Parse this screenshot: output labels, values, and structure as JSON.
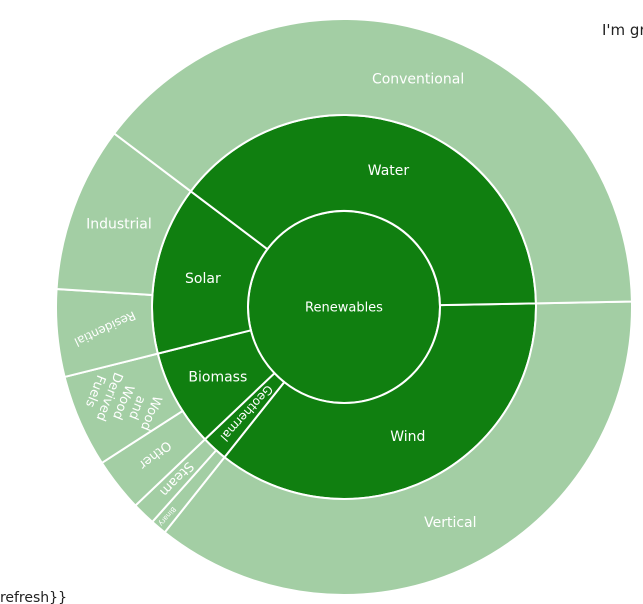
{
  "page_text": {
    "top_right_fragment": "I'm gr",
    "bottom_left_fragment": "t refresh}}"
  },
  "chart_data": {
    "type": "sunburst",
    "root": {
      "name": "Renewables",
      "value": 100,
      "children": [
        {
          "name": "Wind",
          "value": 36,
          "children": [
            {
              "name": "Vertical",
              "value": 36
            }
          ]
        },
        {
          "name": "Geothermal",
          "value": 2.2,
          "children": [
            {
              "name": "Binary",
              "value": 0.9
            },
            {
              "name": "Steam",
              "value": 1.3
            }
          ]
        },
        {
          "name": "Biomass",
          "value": 8.2,
          "children": [
            {
              "name": "Other",
              "value": 3
            },
            {
              "name": "Wood and Wood Derived Fuels",
              "value": 5.2
            }
          ]
        },
        {
          "name": "Solar",
          "value": 14.2,
          "children": [
            {
              "name": "Residential",
              "value": 4.9
            },
            {
              "name": "Industrial",
              "value": 9.3
            }
          ]
        },
        {
          "name": "Water",
          "value": 39.4,
          "children": [
            {
              "name": "Conventional",
              "value": 39.4
            }
          ]
        }
      ]
    },
    "colors": {
      "inner": "#107f10",
      "outer": "#a3cea4",
      "border": "#ffffff",
      "label": "#ffffff"
    },
    "legend": "none"
  }
}
